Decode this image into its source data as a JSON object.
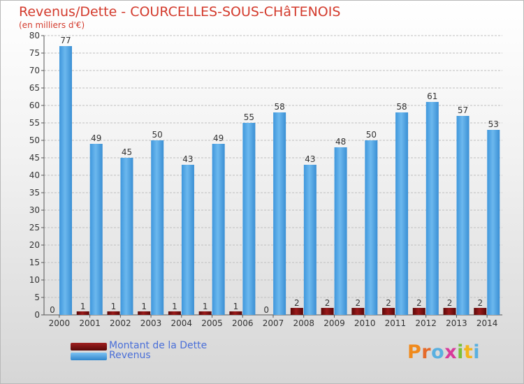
{
  "chart_data": {
    "type": "bar",
    "title": "Revenus/Dette - COURCELLES-SOUS-CHâTENOIS",
    "subtitle": "(en milliers d'€)",
    "categories": [
      "2000",
      "2001",
      "2002",
      "2003",
      "2004",
      "2005",
      "2006",
      "2007",
      "2008",
      "2009",
      "2010",
      "2011",
      "2012",
      "2013",
      "2014"
    ],
    "series": [
      {
        "name": "Montant de la Dette",
        "color": "#7a0f0f",
        "values": [
          0,
          1,
          1,
          1,
          1,
          1,
          1,
          0,
          2,
          2,
          2,
          2,
          2,
          2,
          2
        ]
      },
      {
        "name": "Revenus",
        "color": "#4ea6e6",
        "values": [
          77,
          49,
          45,
          50,
          43,
          49,
          55,
          58,
          43,
          48,
          50,
          58,
          61,
          57,
          53
        ]
      }
    ],
    "ylim": [
      0,
      80
    ],
    "yticks": [
      0,
      5,
      10,
      15,
      20,
      25,
      30,
      35,
      40,
      45,
      50,
      55,
      60,
      65,
      70,
      75,
      80
    ],
    "grid": true,
    "legend_position": "bottom-left"
  },
  "logo": {
    "text": "Proxiti",
    "icon": "proxiti-logo"
  }
}
